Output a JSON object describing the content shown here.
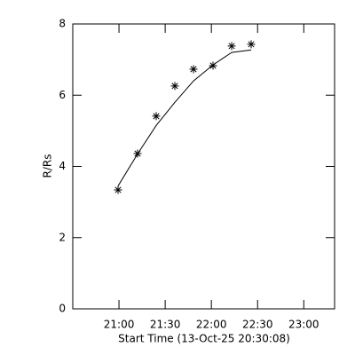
{
  "chart_data": {
    "type": "scatter",
    "x_label": "Start Time (13-Oct-25 20:30:08)",
    "y_label": "R/Rs",
    "xlim": [
      -8,
      10192
    ],
    "xticks": [
      {
        "value": 1792,
        "label": "21:00"
      },
      {
        "value": 3592,
        "label": "21:30"
      },
      {
        "value": 5392,
        "label": "22:00"
      },
      {
        "value": 7192,
        "label": "22:30"
      },
      {
        "value": 8992,
        "label": "23:00"
      }
    ],
    "ylim": [
      0,
      8
    ],
    "yticks": [
      0,
      2,
      4,
      6,
      8
    ],
    "color": "#000000",
    "series": [
      {
        "marker": "asterisk",
        "x": [
          1756,
          2516,
          3243,
          3969,
          4695,
          5456,
          6182,
          6943
        ],
        "values": [
          3.34,
          4.36,
          5.41,
          6.26,
          6.73,
          6.83,
          7.38,
          7.43
        ]
      },
      {
        "marker": "line",
        "x": [
          1756,
          2516,
          3243,
          3969,
          4695,
          5456,
          6182,
          6943
        ],
        "values": [
          3.45,
          4.35,
          5.15,
          5.8,
          6.4,
          6.85,
          7.2,
          7.27
        ]
      }
    ]
  }
}
